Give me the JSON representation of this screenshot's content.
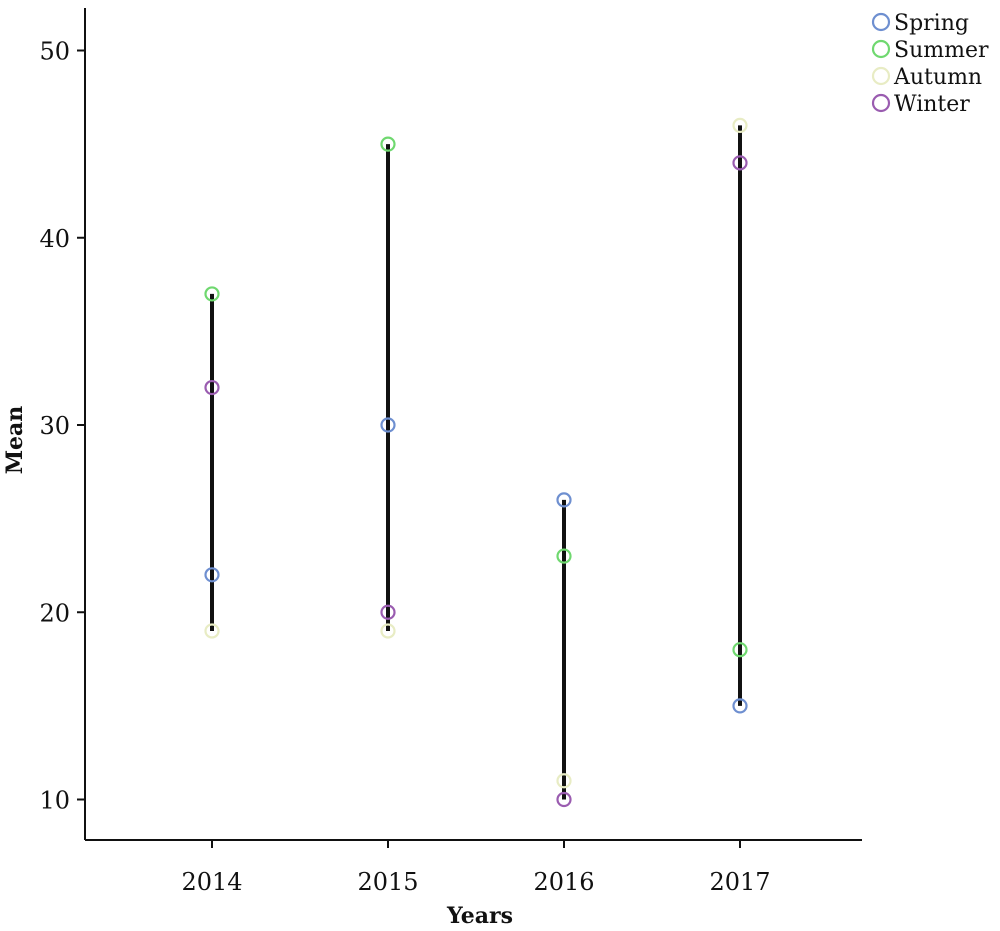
{
  "chart_data": {
    "type": "scatter",
    "title": "",
    "xlabel": "Years",
    "ylabel": "Mean",
    "categories": [
      "2014",
      "2015",
      "2016",
      "2017"
    ],
    "ylim": [
      8,
      52
    ],
    "yticks": [
      10,
      20,
      30,
      40,
      50
    ],
    "grid": false,
    "legend_position": "top-right",
    "series": [
      {
        "name": "Spring",
        "color": "#6e8fd0",
        "values": [
          22,
          30,
          26,
          15
        ]
      },
      {
        "name": "Summer",
        "color": "#6fd86f",
        "values": [
          37,
          45,
          23,
          18
        ]
      },
      {
        "name": "Autumn",
        "color": "#e8ecc4",
        "values": [
          19,
          19,
          11,
          46
        ]
      },
      {
        "name": "Winter",
        "color": "#9a5cb0",
        "values": [
          32,
          20,
          10,
          44
        ]
      }
    ],
    "range_lines": [
      {
        "category": "2014",
        "low": 19,
        "high": 37
      },
      {
        "category": "2015",
        "low": 19,
        "high": 45
      },
      {
        "category": "2016",
        "low": 10,
        "high": 26
      },
      {
        "category": "2017",
        "low": 15,
        "high": 46
      }
    ]
  }
}
